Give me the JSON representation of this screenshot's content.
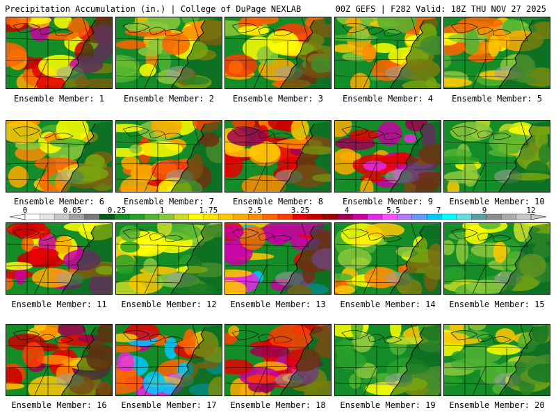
{
  "header": {
    "title_left": "Precipitation Accumulation (in.) | College of DuPage NEXLAB",
    "title_right": "00Z GEFS | F282 Valid: 18Z THU NOV 27 2025"
  },
  "members": [
    {
      "label": "Ensemble Member: 1",
      "style": "west-heavy"
    },
    {
      "label": "Ensemble Member: 2",
      "style": "moderate"
    },
    {
      "label": "Ensemble Member: 3",
      "style": "band"
    },
    {
      "label": "Ensemble Member: 4",
      "style": "moderate"
    },
    {
      "label": "Ensemble Member: 5",
      "style": "moderate"
    },
    {
      "label": "Ensemble Member: 6",
      "style": "moderate"
    },
    {
      "label": "Ensemble Member: 7",
      "style": "band"
    },
    {
      "label": "Ensemble Member: 8",
      "style": "heavy"
    },
    {
      "label": "Ensemble Member: 9",
      "style": "very-heavy"
    },
    {
      "label": "Ensemble Member: 10",
      "style": "light"
    },
    {
      "label": "Ensemble Member: 11",
      "style": "west-heavy"
    },
    {
      "label": "Ensemble Member: 12",
      "style": "light"
    },
    {
      "label": "Ensemble Member: 13",
      "style": "southwest-heavy"
    },
    {
      "label": "Ensemble Member: 14",
      "style": "moderate"
    },
    {
      "label": "Ensemble Member: 15",
      "style": "light"
    },
    {
      "label": "Ensemble Member: 16",
      "style": "heavy"
    },
    {
      "label": "Ensemble Member: 17",
      "style": "southwest-heavy"
    },
    {
      "label": "Ensemble Member: 18",
      "style": "very-heavy"
    },
    {
      "label": "Ensemble Member: 19",
      "style": "light"
    },
    {
      "label": "Ensemble Member: 20",
      "style": "light"
    }
  ],
  "legend": {
    "tick_labels": [
      "0",
      "0.05",
      "0.25",
      "1",
      "1.75",
      "2.5",
      "3.25",
      "4",
      "5.5",
      "7",
      "9",
      "12"
    ],
    "colors": [
      "#ffffff",
      "#e6e6e6",
      "#c8c8c8",
      "#a0a0a0",
      "#787878",
      "#0a5a1e",
      "#148c28",
      "#28a028",
      "#50b432",
      "#8cc83c",
      "#c8dc28",
      "#ffff00",
      "#ffe600",
      "#ffc800",
      "#ffaa00",
      "#ff8c00",
      "#ff6400",
      "#ff3c00",
      "#e60000",
      "#c80000",
      "#a00000",
      "#a00050",
      "#c800a0",
      "#e628e6",
      "#ff50ff",
      "#b478ff",
      "#6496ff",
      "#00c8ff",
      "#00ffff",
      "#64dcdc",
      "#5aa0a0",
      "#8c8c8c",
      "#aaaaaa",
      "#c8c8c8"
    ]
  }
}
